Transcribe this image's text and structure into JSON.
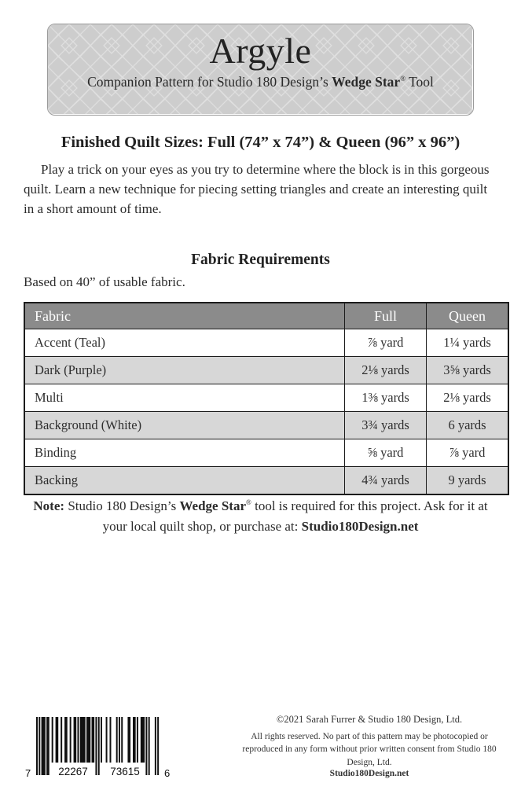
{
  "header": {
    "title": "Argyle",
    "subtitle_prefix": "Companion Pattern for Studio 180 Design’s ",
    "subtitle_bold": "Wedge Star",
    "subtitle_reg": "®",
    "subtitle_suffix": " Tool"
  },
  "sizes_heading": "Finished Quilt Sizes: Full (74” x 74”) & Queen (96” x 96”)",
  "intro_paragraph": "Play a trick on your eyes as you try to determine where the block is in this gorgeous quilt. Learn a new technique for piecing setting triangles and create an interesting quilt in a short amount of time.",
  "fabric_section": {
    "heading": "Fabric Requirements",
    "usable_note": "Based on 40” of usable fabric.",
    "table": {
      "columns": [
        "Fabric",
        "Full",
        "Queen"
      ],
      "rows": [
        {
          "fabric": "Accent (Teal)",
          "full": "⅞ yard",
          "queen": "1¼ yards"
        },
        {
          "fabric": "Dark (Purple)",
          "full": "2⅛ yards",
          "queen": "3⅝ yards"
        },
        {
          "fabric": "Multi",
          "full": "1⅜ yards",
          "queen": "2⅛ yards"
        },
        {
          "fabric": "Background (White)",
          "full": "3¾ yards",
          "queen": "6 yards"
        },
        {
          "fabric": "Binding",
          "full": "⅝ yard",
          "queen": "⅞ yard"
        },
        {
          "fabric": "Backing",
          "full": "4¾ yards",
          "queen": "9 yards"
        }
      ]
    }
  },
  "tool_note": {
    "label": "Note:",
    "text_1": " Studio 180 Design’s ",
    "bold_1": "Wedge Star",
    "reg": "®",
    "text_2": " tool is required for this project. Ask for it at your local quilt shop, or purchase at: ",
    "bold_2": "Studio180Design.net"
  },
  "footer": {
    "barcode": {
      "first_digit": "7",
      "group_1": "22267",
      "group_2": "73615",
      "last_digit": "6",
      "pattern": "10101110110010011001001100100110101111011101101010100010010000101010000110011010011101010000101"
    },
    "copyright_line": "©2021 Sarah Furrer & Studio 180 Design, Ltd.",
    "rights_text": "All rights reserved. No part of this pattern may be photocopied or reproduced in any form without prior written consent from Studio 180 Design, Ltd.",
    "website": "Studio180Design.net"
  },
  "colors": {
    "banner_fill": "#cdcdcd",
    "banner_pattern_line": "#dfdfdf",
    "table_header_gray": "#8b8b8b",
    "row_alt_gray": "#d7d7d7",
    "table_border": "#1c1c1c",
    "text": "#2b2b2b"
  }
}
